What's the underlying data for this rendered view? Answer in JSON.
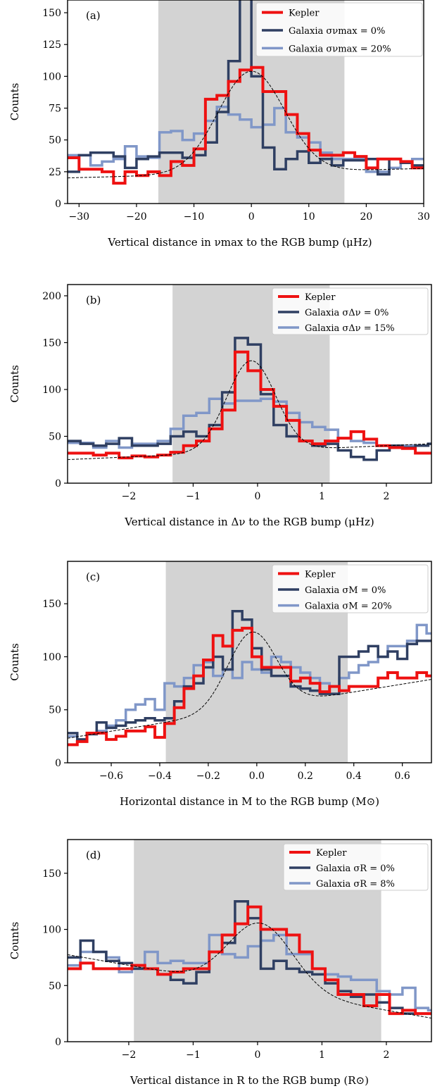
{
  "colors": {
    "kepler": "#ee1111",
    "galaxia0": "#2f3f62",
    "galaxia_err": "#8097c8",
    "shade": "#d3d3d3",
    "fit": "#000000"
  },
  "chart_data": [
    {
      "type": "line",
      "panel": "(a)",
      "xlabel": "Vertical distance in νmax to the RGB bump (μHz)",
      "ylabel": "Counts",
      "xlim": [
        -32,
        30
      ],
      "ylim": [
        0,
        160
      ],
      "xticks": [
        -30,
        -20,
        -10,
        0,
        10,
        20,
        30
      ],
      "xtick_labels": [
        "−30",
        "−20",
        "−10",
        "0",
        "10",
        "20",
        "30"
      ],
      "yticks": [
        0,
        25,
        50,
        75,
        100,
        125,
        150
      ],
      "ytick_labels": [
        "0",
        "25",
        "50",
        "75",
        "100",
        "125",
        "150"
      ],
      "shade": [
        -16.2,
        16.2
      ],
      "legend_position": "top-right",
      "legend": [
        "Kepler",
        "Galaxia σνmax = 0%",
        "Galaxia σνmax = 20%"
      ],
      "fit": {
        "A": 80,
        "mu": 0,
        "sigma": 5.8,
        "base": [
          24,
          0.12
        ]
      },
      "bin_edges": [
        -32,
        -30,
        -28,
        -26,
        -24,
        -22,
        -20,
        -18,
        -16,
        -14,
        -12,
        -10,
        -8,
        -6,
        -4,
        -2,
        0,
        2,
        4,
        6,
        8,
        10,
        12,
        14,
        16,
        18,
        20,
        22,
        24,
        26,
        28,
        30
      ],
      "series": [
        {
          "name": "Kepler",
          "values": [
            36,
            27,
            27,
            25,
            16,
            25,
            22,
            25,
            22,
            33,
            30,
            43,
            82,
            85,
            96,
            105,
            107,
            88,
            88,
            70,
            55,
            42,
            38,
            38,
            40,
            37,
            28,
            35,
            35,
            33,
            28
          ]
        },
        {
          "name": "Galaxia σνmax = 0%",
          "values": [
            25,
            38,
            40,
            40,
            37,
            28,
            35,
            37,
            40,
            40,
            36,
            38,
            48,
            72,
            112,
            165,
            100,
            44,
            27,
            35,
            41,
            32,
            35,
            30,
            34,
            34,
            35,
            23,
            35,
            32,
            30
          ]
        },
        {
          "name": "Galaxia σνmax = 20%",
          "values": [
            38,
            38,
            30,
            33,
            35,
            45,
            37,
            36,
            56,
            57,
            50,
            55,
            65,
            76,
            70,
            66,
            60,
            62,
            75,
            56,
            52,
            48,
            40,
            35,
            35,
            35,
            25,
            25,
            28,
            32,
            35
          ]
        }
      ]
    },
    {
      "type": "line",
      "panel": "(b)",
      "xlabel": "Vertical distance in Δν to the RGB bump (μHz)",
      "ylabel": "Counts",
      "xlim": [
        -2.95,
        2.7
      ],
      "ylim": [
        0,
        212
      ],
      "xticks": [
        -2,
        -1,
        0,
        1,
        2
      ],
      "xtick_labels": [
        "−2",
        "−1",
        "0",
        "1",
        "2"
      ],
      "yticks": [
        0,
        50,
        100,
        150,
        200
      ],
      "ytick_labels": [
        "0",
        "50",
        "100",
        "150",
        "200"
      ],
      "shade": [
        -1.32,
        1.12
      ],
      "legend_position": "top-right",
      "legend": [
        "Kepler",
        "Galaxia σΔν = 0%",
        "Galaxia σΔν = 15%"
      ],
      "fit": {
        "A": 97,
        "mu": -0.1,
        "sigma": 0.38,
        "base": [
          34,
          3
        ]
      },
      "bin_edges": [
        -2.95,
        -2.75,
        -2.55,
        -2.35,
        -2.15,
        -1.95,
        -1.75,
        -1.55,
        -1.35,
        -1.15,
        -0.95,
        -0.75,
        -0.55,
        -0.35,
        -0.15,
        0.05,
        0.25,
        0.45,
        0.65,
        0.85,
        1.05,
        1.25,
        1.45,
        1.65,
        1.85,
        2.05,
        2.25,
        2.45,
        2.65,
        2.7
      ],
      "series": [
        {
          "name": "Kepler",
          "values": [
            32,
            32,
            30,
            32,
            27,
            29,
            28,
            30,
            33,
            40,
            45,
            58,
            78,
            140,
            120,
            100,
            82,
            67,
            45,
            42,
            45,
            48,
            55,
            47,
            40,
            38,
            37,
            32,
            32
          ]
        },
        {
          "name": "Galaxia σΔν = 0%",
          "values": [
            45,
            42,
            40,
            42,
            48,
            40,
            40,
            42,
            50,
            55,
            50,
            62,
            97,
            155,
            148,
            95,
            62,
            50,
            45,
            40,
            42,
            35,
            28,
            25,
            35,
            40,
            38,
            40,
            42
          ]
        },
        {
          "name": "Galaxia σΔν = 15%",
          "values": [
            43,
            43,
            38,
            45,
            38,
            42,
            42,
            45,
            58,
            72,
            75,
            90,
            85,
            88,
            88,
            90,
            87,
            75,
            65,
            60,
            57,
            48,
            45,
            43,
            40,
            40,
            40,
            40,
            42
          ]
        }
      ]
    },
    {
      "type": "line",
      "panel": "(c)",
      "xlabel": "Horizontal distance in M to the RGB bump (M⊙)",
      "ylabel": "Counts",
      "xlim": [
        -0.78,
        0.72
      ],
      "ylim": [
        0,
        190
      ],
      "xticks": [
        -0.6,
        -0.4,
        -0.2,
        0.0,
        0.2,
        0.4,
        0.6
      ],
      "xtick_labels": [
        "−0.6",
        "−0.4",
        "−0.2",
        "0.0",
        "0.2",
        "0.4",
        "0.6"
      ],
      "yticks": [
        0,
        50,
        100,
        150
      ],
      "ytick_labels": [
        "0",
        "50",
        "100",
        "150"
      ],
      "shade": [
        -0.375,
        0.375
      ],
      "legend_position": "top-right",
      "legend": [
        "Kepler",
        "Galaxia σM = 0%",
        "Galaxia σM = 20%"
      ],
      "fit": {
        "A": 72,
        "mu": -0.02,
        "sigma": 0.1,
        "base": [
          52,
          37
        ]
      },
      "bin_edges": [
        -0.78,
        -0.74,
        -0.7,
        -0.66,
        -0.62,
        -0.58,
        -0.54,
        -0.5,
        -0.46,
        -0.42,
        -0.38,
        -0.34,
        -0.3,
        -0.26,
        -0.22,
        -0.18,
        -0.14,
        -0.1,
        -0.06,
        -0.02,
        0.02,
        0.06,
        0.1,
        0.14,
        0.18,
        0.22,
        0.26,
        0.3,
        0.34,
        0.38,
        0.42,
        0.46,
        0.5,
        0.54,
        0.58,
        0.62,
        0.66,
        0.7,
        0.72
      ],
      "series": [
        {
          "name": "Kepler",
          "values": [
            17,
            20,
            28,
            28,
            22,
            25,
            30,
            30,
            34,
            24,
            37,
            52,
            70,
            82,
            97,
            120,
            110,
            125,
            127,
            100,
            90,
            90,
            90,
            77,
            80,
            75,
            67,
            72,
            68,
            72,
            72,
            72,
            80,
            85,
            80,
            80,
            85,
            82
          ]
        },
        {
          "name": "Galaxia σM = 0%",
          "values": [
            28,
            22,
            27,
            38,
            33,
            35,
            38,
            40,
            42,
            40,
            42,
            58,
            72,
            75,
            90,
            100,
            88,
            143,
            135,
            108,
            88,
            82,
            82,
            72,
            70,
            68,
            65,
            65,
            100,
            100,
            105,
            110,
            100,
            105,
            98,
            112,
            115,
            115
          ]
        },
        {
          "name": "Galaxia σM = 20%",
          "values": [
            25,
            22,
            28,
            30,
            35,
            40,
            50,
            55,
            60,
            50,
            75,
            72,
            80,
            92,
            95,
            82,
            88,
            80,
            95,
            88,
            85,
            100,
            95,
            90,
            85,
            80,
            75,
            72,
            80,
            85,
            92,
            95,
            100,
            110,
            110,
            115,
            130,
            122
          ]
        }
      ]
    },
    {
      "type": "line",
      "panel": "(d)",
      "xlabel": "Vertical distance in R to the RGB bump (R⊙)",
      "ylabel": "Counts",
      "xlim": [
        -2.95,
        2.7
      ],
      "ylim": [
        0,
        180
      ],
      "xticks": [
        -2,
        -1,
        0,
        1,
        2
      ],
      "xtick_labels": [
        "−2",
        "−1",
        "0",
        "1",
        "2"
      ],
      "yticks": [
        0,
        50,
        100,
        150
      ],
      "ytick_labels": [
        "0",
        "50",
        "100",
        "150"
      ],
      "shade": [
        -1.92,
        1.92
      ],
      "legend_position": "top-right",
      "legend": [
        "Kepler",
        "Galaxia σR = 0%",
        "Galaxia σR = 8%"
      ],
      "fit": {
        "A": 58,
        "mu": 0.05,
        "sigma": 0.5,
        "base": [
          48,
          -10
        ]
      },
      "bin_edges": [
        -2.95,
        -2.75,
        -2.55,
        -2.35,
        -2.15,
        -1.95,
        -1.75,
        -1.55,
        -1.35,
        -1.15,
        -0.95,
        -0.75,
        -0.55,
        -0.35,
        -0.15,
        0.05,
        0.25,
        0.45,
        0.65,
        0.85,
        1.05,
        1.25,
        1.45,
        1.65,
        1.85,
        2.05,
        2.25,
        2.45,
        2.65,
        2.7
      ],
      "series": [
        {
          "name": "Kepler",
          "values": [
            65,
            70,
            65,
            65,
            65,
            68,
            65,
            60,
            62,
            65,
            65,
            80,
            95,
            105,
            120,
            100,
            100,
            95,
            80,
            65,
            55,
            42,
            42,
            32,
            42,
            25,
            28,
            25,
            25
          ]
        },
        {
          "name": "Galaxia σR = 0%",
          "values": [
            75,
            90,
            80,
            72,
            70,
            65,
            65,
            60,
            55,
            52,
            62,
            80,
            88,
            125,
            110,
            65,
            72,
            65,
            62,
            60,
            52,
            45,
            40,
            42,
            35,
            30,
            25,
            25,
            25
          ]
        },
        {
          "name": "Galaxia σR = 8%",
          "values": [
            68,
            80,
            80,
            75,
            62,
            65,
            80,
            70,
            72,
            70,
            70,
            95,
            78,
            75,
            85,
            90,
            95,
            78,
            78,
            65,
            60,
            58,
            55,
            55,
            45,
            42,
            48,
            30,
            28
          ]
        }
      ]
    }
  ]
}
